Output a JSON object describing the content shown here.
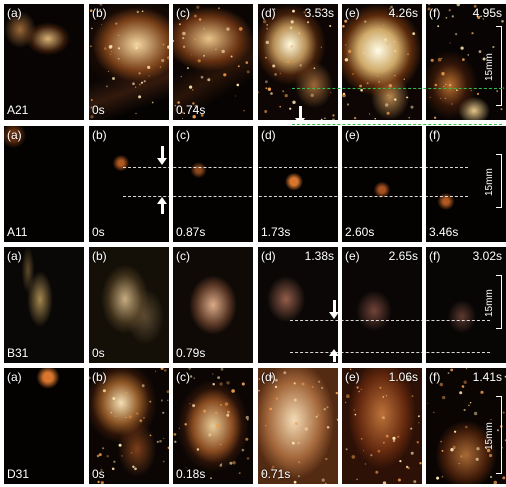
{
  "figure": {
    "rows": [
      {
        "sample": "A21",
        "panels": [
          {
            "letter": "(a)",
            "time": "",
            "time_pos": "none"
          },
          {
            "letter": "(b)",
            "time": "0s",
            "time_pos": "bottom"
          },
          {
            "letter": "(c)",
            "time": "0.74s",
            "time_pos": "bottom"
          },
          {
            "letter": "(d)",
            "time": "3.53s",
            "time_pos": "top"
          },
          {
            "letter": "(e)",
            "time": "4.26s",
            "time_pos": "top"
          },
          {
            "letter": "(f)",
            "time": "4.95s",
            "time_pos": "top"
          }
        ],
        "scale_label": "15mm"
      },
      {
        "sample": "A11",
        "panels": [
          {
            "letter": "(a)",
            "time": "",
            "time_pos": "none"
          },
          {
            "letter": "(b)",
            "time": "0s",
            "time_pos": "bottom"
          },
          {
            "letter": "(c)",
            "time": "0.87s",
            "time_pos": "bottom"
          },
          {
            "letter": "(d)",
            "time": "1.73s",
            "time_pos": "bottom"
          },
          {
            "letter": "(e)",
            "time": "2.60s",
            "time_pos": "bottom"
          },
          {
            "letter": "(f)",
            "time": "3.46s",
            "time_pos": "bottom"
          }
        ],
        "scale_label": "15mm"
      },
      {
        "sample": "B31",
        "panels": [
          {
            "letter": "(a)",
            "time": "",
            "time_pos": "none"
          },
          {
            "letter": "(b)",
            "time": "0s",
            "time_pos": "bottom"
          },
          {
            "letter": "(c)",
            "time": "0.79s",
            "time_pos": "bottom"
          },
          {
            "letter": "(d)",
            "time": "1.38s",
            "time_pos": "top"
          },
          {
            "letter": "(e)",
            "time": "2.65s",
            "time_pos": "top"
          },
          {
            "letter": "(f)",
            "time": "3.02s",
            "time_pos": "top"
          }
        ],
        "scale_label": "15mm"
      },
      {
        "sample": "D31",
        "panels": [
          {
            "letter": "(a)",
            "time": "",
            "time_pos": "none"
          },
          {
            "letter": "(b)",
            "time": "0s",
            "time_pos": "bottom"
          },
          {
            "letter": "(c)",
            "time": "0.18s",
            "time_pos": "bottom"
          },
          {
            "letter": "(d)",
            "time": "0.71s",
            "time_pos": "bottom"
          },
          {
            "letter": "(e)",
            "time": "1.06s",
            "time_pos": "top"
          },
          {
            "letter": "(f)",
            "time": "1.41s",
            "time_pos": "top"
          }
        ],
        "scale_label": "15mm"
      }
    ],
    "colors": {
      "flame_core": "#fff4d0",
      "flame_mid": "#f0a040",
      "flame_edge": "#8a3a10",
      "background": "#050302",
      "guide_green": "#2fbf4a"
    }
  }
}
